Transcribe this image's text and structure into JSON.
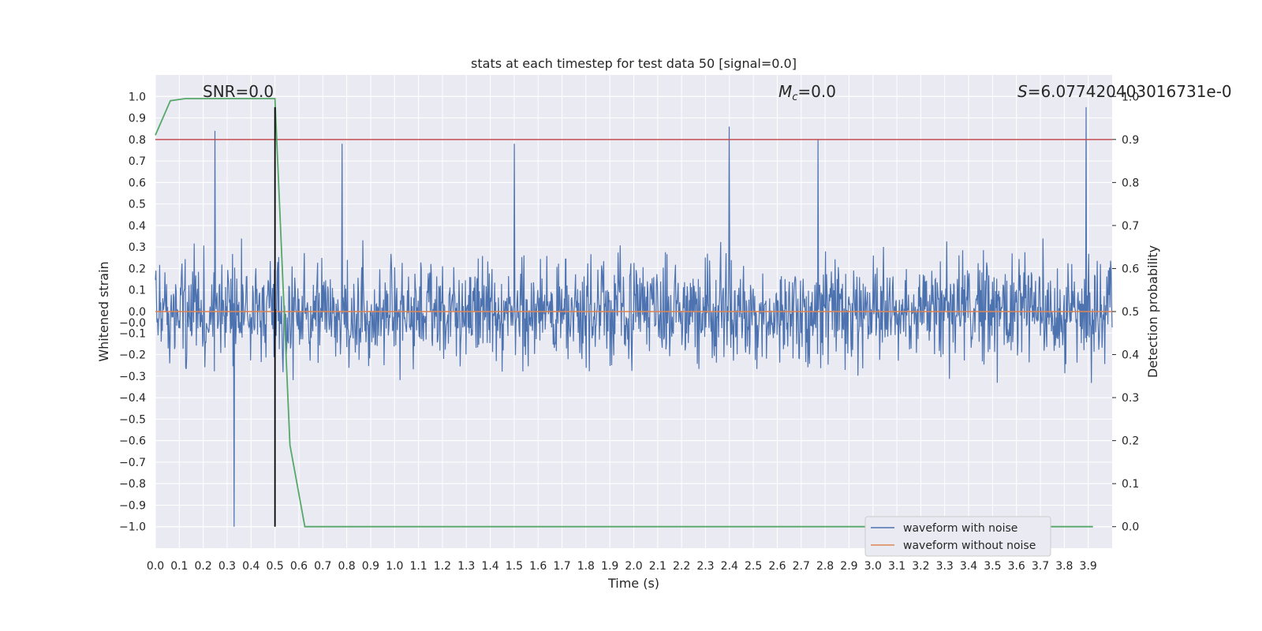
{
  "chart_data": {
    "type": "line",
    "title": "stats at each timestep for test data 50 [signal=0.0]",
    "xlabel": "Time (s)",
    "ylabel": "Whitened strain",
    "ylabel_right": "Detection probability",
    "xlim": [
      0.0,
      4.0
    ],
    "ylim": [
      -1.1,
      1.1
    ],
    "ylim_right": [
      -0.05,
      1.05
    ],
    "x_ticks": [
      "0.0",
      "0.1",
      "0.2",
      "0.3",
      "0.4",
      "0.5",
      "0.6",
      "0.7",
      "0.8",
      "0.9",
      "1.0",
      "1.1",
      "1.2",
      "1.3",
      "1.4",
      "1.5",
      "1.6",
      "1.7",
      "1.8",
      "1.9",
      "2.0",
      "2.1",
      "2.2",
      "2.3",
      "2.4",
      "2.5",
      "2.6",
      "2.7",
      "2.8",
      "2.9",
      "3.0",
      "3.1",
      "3.2",
      "3.3",
      "3.4",
      "3.5",
      "3.6",
      "3.7",
      "3.8",
      "3.9"
    ],
    "y_ticks": [
      "1.0",
      "0.9",
      "0.8",
      "0.7",
      "0.6",
      "0.5",
      "0.4",
      "0.3",
      "0.2",
      "0.1",
      "0.0",
      "−0.0",
      "−0.1",
      "−0.2",
      "−0.3",
      "−0.4",
      "−0.5",
      "−0.6",
      "−0.7",
      "−0.8",
      "−0.9",
      "−1.0"
    ],
    "y_ticks_right": [
      "1.0",
      "0.9",
      "0.8",
      "0.7",
      "0.6",
      "0.5",
      "0.4",
      "0.3",
      "0.2",
      "0.1",
      "0.0"
    ],
    "grid": true,
    "legend_position": "lower-right",
    "annotations": {
      "snr": "SNR=0.0",
      "mc_symbol": "M",
      "mc_sub": "c",
      "mc_value": "=0.0",
      "s_symbol": "S",
      "s_value": "=6.077420403016731e-0"
    },
    "threshold": {
      "value": 0.9,
      "color": "#c44e52"
    },
    "marker_time": 0.5,
    "series": [
      {
        "name": "waveform with noise",
        "color": "#4c72b0",
        "axis": "left",
        "description": "dense noise, mostly within ±0.4, spikes to ~±0.9",
        "peaks": [
          {
            "x": 0.25,
            "y": 0.84
          },
          {
            "x": 0.33,
            "y": -1.0
          },
          {
            "x": 0.78,
            "y": 0.78
          },
          {
            "x": 1.5,
            "y": 0.78
          },
          {
            "x": 2.4,
            "y": 0.86
          },
          {
            "x": 2.77,
            "y": 0.8
          },
          {
            "x": 3.89,
            "y": 0.95
          }
        ]
      },
      {
        "name": "waveform without noise",
        "color": "#dd8452",
        "axis": "left",
        "x": [
          0.0,
          4.0
        ],
        "y": [
          0.0,
          0.0
        ]
      },
      {
        "name": "detection probability",
        "color": "#55a868",
        "axis": "right",
        "x": [
          0.0,
          0.0625,
          0.125,
          0.1875,
          0.25,
          0.3125,
          0.375,
          0.4375,
          0.5,
          0.5625,
          0.625,
          0.6875,
          0.75,
          1.0,
          1.5,
          2.0,
          2.5,
          3.0,
          3.5,
          3.92
        ],
        "y": [
          0.91,
          0.99,
          0.995,
          0.995,
          0.995,
          0.995,
          0.995,
          0.995,
          0.995,
          0.19,
          0.0,
          0.0,
          0.0,
          0.0,
          0.0,
          0.0,
          0.0,
          0.0,
          0.0,
          0.0
        ]
      }
    ]
  }
}
